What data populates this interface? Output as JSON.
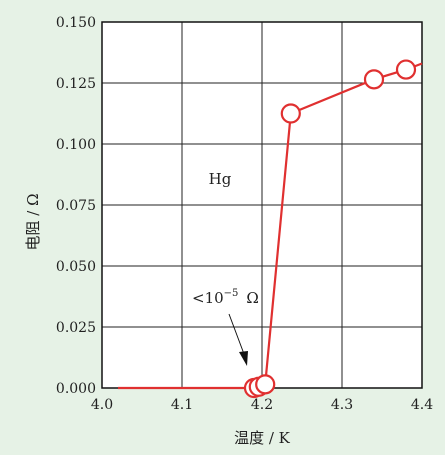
{
  "chart_data": {
    "type": "line",
    "title": "",
    "xlabel": "温度 / K",
    "ylabel": "电阻 / Ω",
    "xlim": [
      4.0,
      4.4
    ],
    "ylim": [
      0.0,
      0.15
    ],
    "x_ticks": [
      "4.0",
      "4.1",
      "4.2",
      "4.3",
      "4.4"
    ],
    "y_ticks": [
      "0.000",
      "0.025",
      "0.050",
      "0.075",
      "0.100",
      "0.125",
      "0.150"
    ],
    "grid": true,
    "line_color": "#e03030",
    "background": "#e6f2e6",
    "series": [
      {
        "x": [
          4.02,
          4.184,
          4.19,
          4.196,
          4.204,
          4.236,
          4.34,
          4.38,
          4.4
        ],
        "y": [
          0.0,
          0.0,
          0.0,
          0.0005,
          0.0015,
          0.1125,
          0.1265,
          0.1305,
          0.133
        ],
        "markers": [
          false,
          false,
          true,
          true,
          true,
          true,
          true,
          true,
          false
        ]
      }
    ],
    "annotations": {
      "material": "Hg",
      "limit_prefix": "<10",
      "limit_exp": "−5",
      "limit_unit": "Ω"
    }
  }
}
